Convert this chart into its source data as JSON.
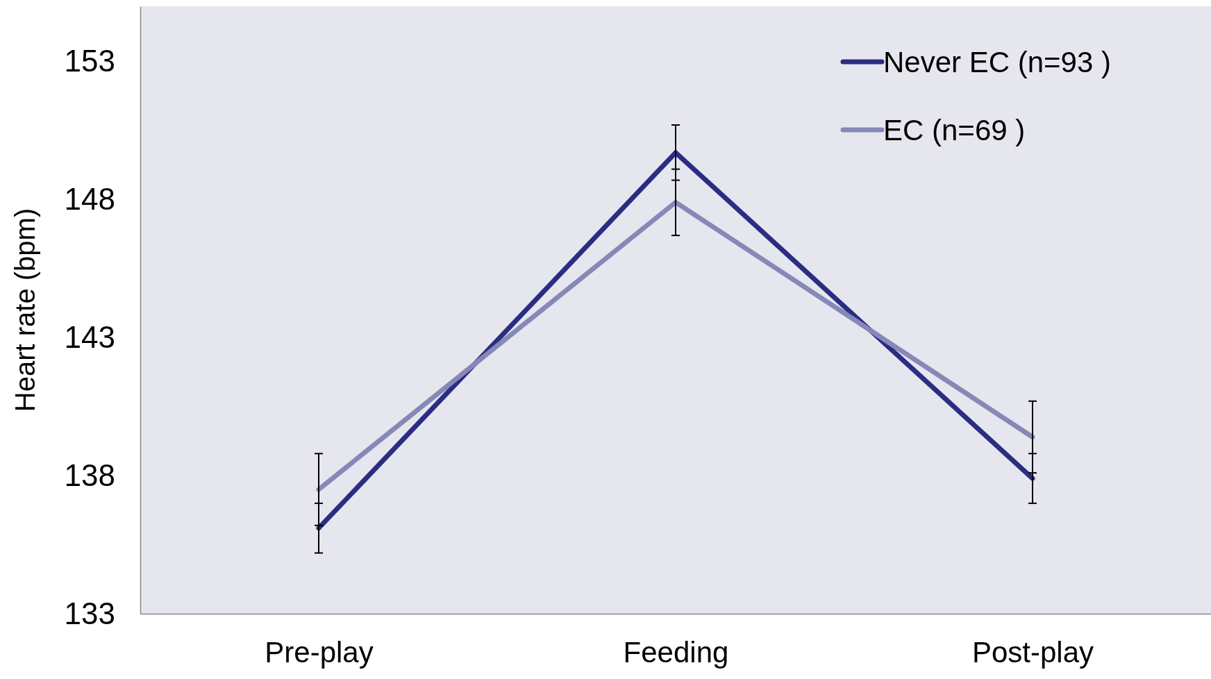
{
  "chart_data": {
    "type": "line",
    "ylabel": "Heart rate (bpm)",
    "categories": [
      "Pre-play",
      "Feeding",
      "Post-play"
    ],
    "series": [
      {
        "name": "Never EC (n=93 )",
        "color": "#2b2d83",
        "values": [
          136.1,
          149.7,
          137.9
        ],
        "errors": [
          0.9,
          1.0,
          0.9
        ]
      },
      {
        "name": "EC (n=69 )",
        "color": "#8788b8",
        "values": [
          137.5,
          147.9,
          139.4
        ],
        "errors": [
          1.3,
          1.2,
          1.3
        ]
      }
    ],
    "ylim": [
      133,
      155
    ],
    "yticks": [
      133,
      138,
      143,
      148,
      153
    ],
    "grid": false,
    "legend": "top right",
    "marker": "none"
  }
}
